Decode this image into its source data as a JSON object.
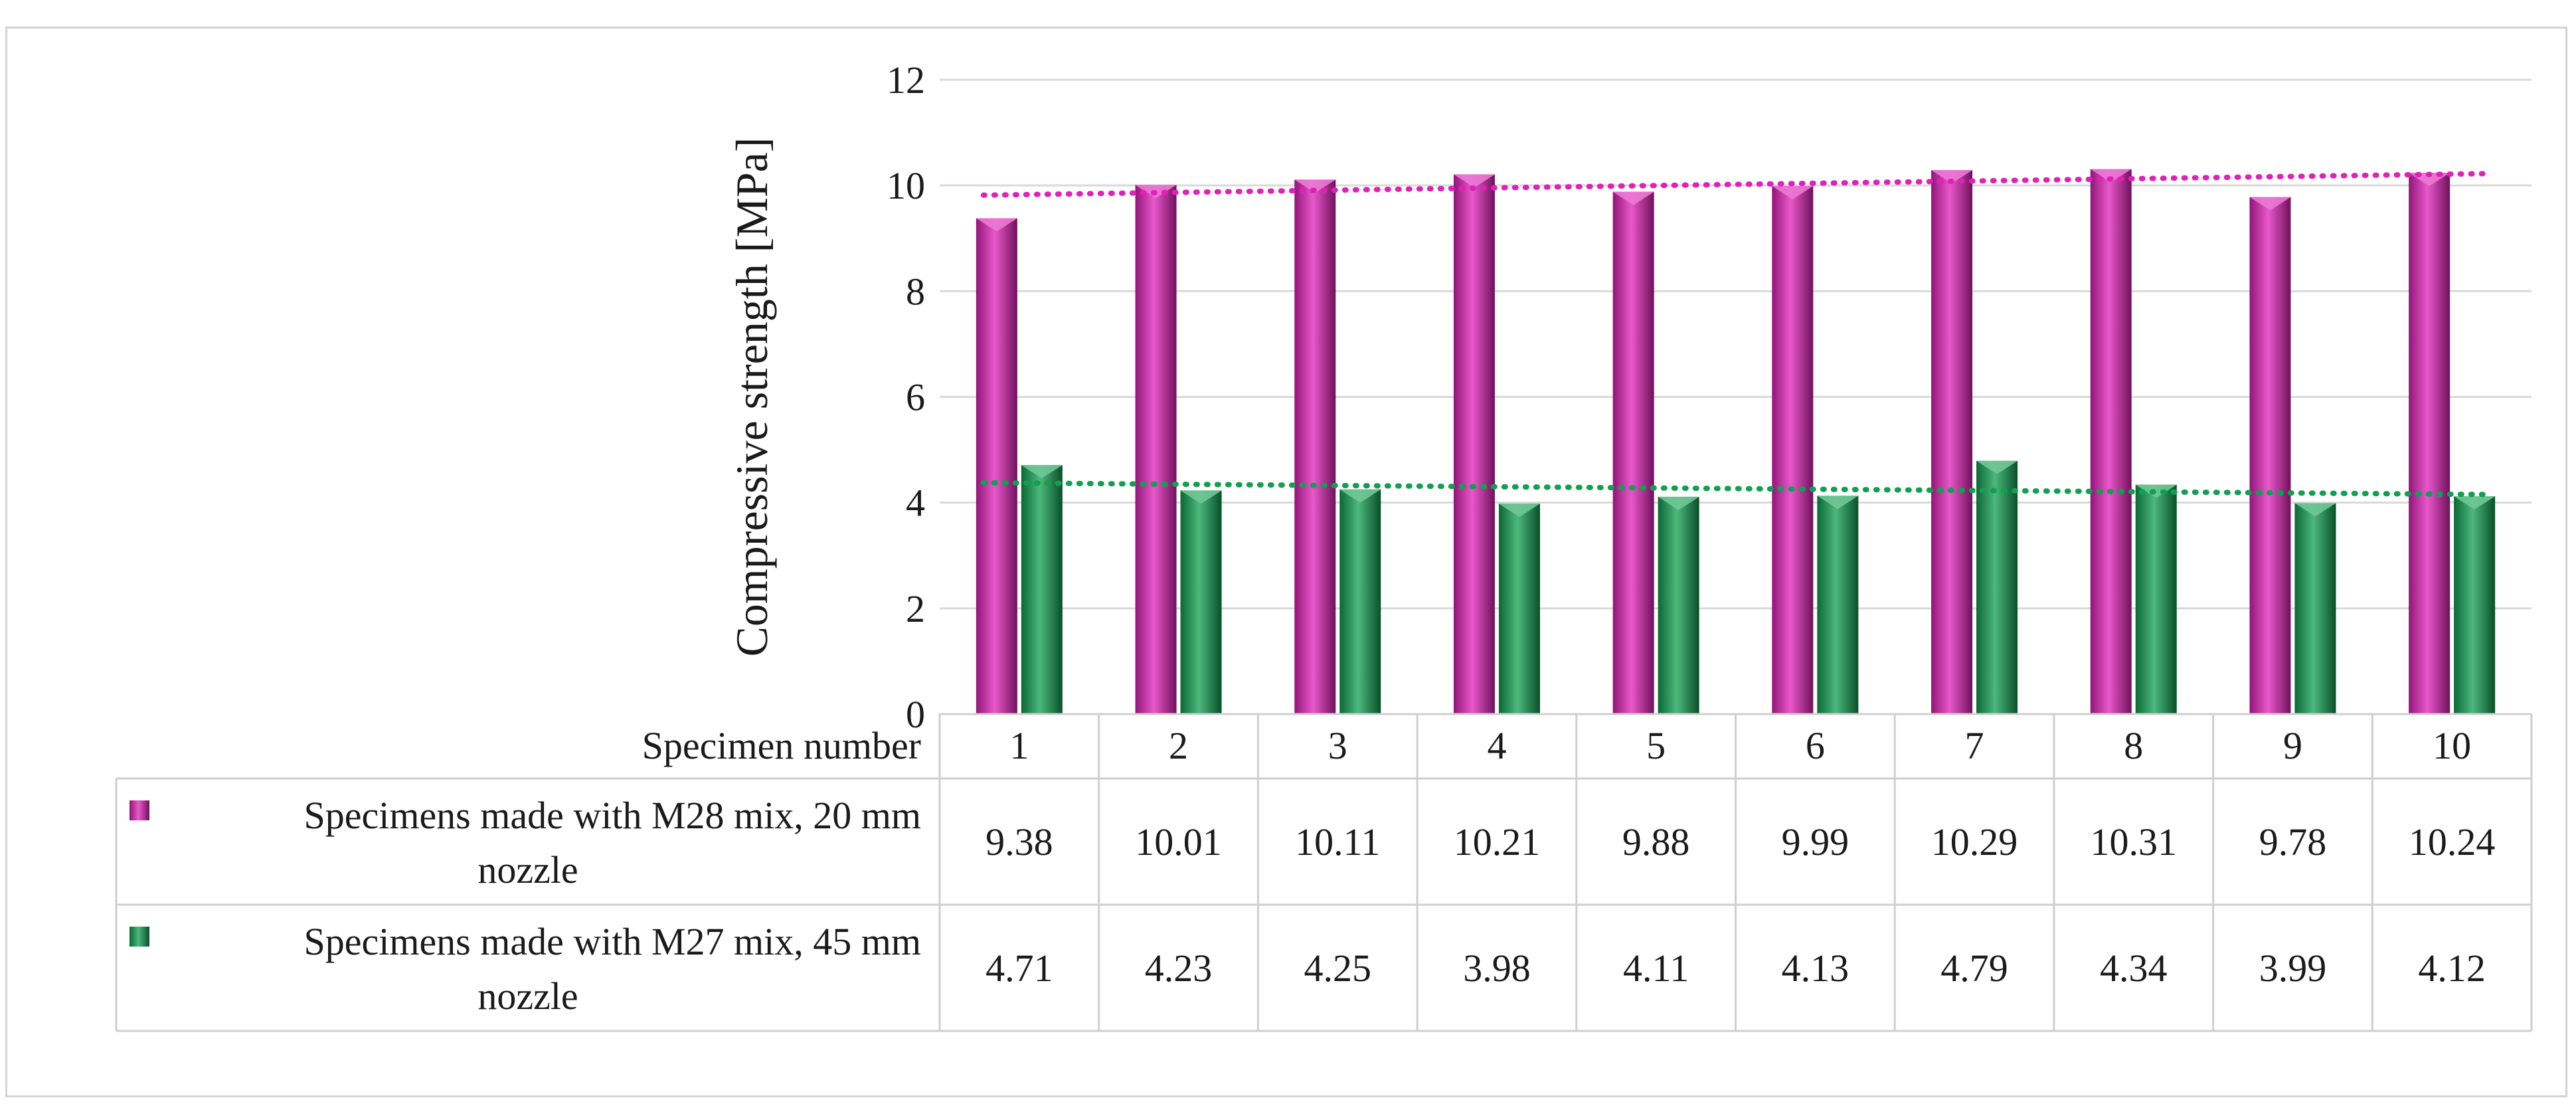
{
  "chart_data": {
    "type": "bar",
    "title": "",
    "ylabel": "Compressive strength [MPa]",
    "xlabel": "Specimen number",
    "ylim": [
      0,
      12
    ],
    "yticks": [
      0,
      2,
      4,
      6,
      8,
      10,
      12
    ],
    "grid": true,
    "categories": [
      "1",
      "2",
      "3",
      "4",
      "5",
      "6",
      "7",
      "8",
      "9",
      "10"
    ],
    "series": [
      {
        "name": "Specimens made with M28 mix, 20 mm nozzle",
        "name_lines": [
          "Specimens made with M28 mix, 20 mm",
          "nozzle"
        ],
        "color": "#e020b8",
        "values": [
          9.38,
          10.01,
          10.11,
          10.21,
          9.88,
          9.99,
          10.29,
          10.31,
          9.78,
          10.24
        ],
        "value_labels": [
          "9.38",
          "10.01",
          "10.11",
          "10.21",
          "9.88",
          "9.99",
          "10.29",
          "10.31",
          "9.78",
          "10.24"
        ],
        "trendline": true
      },
      {
        "name": "Specimens made with M27 mix, 45 mm nozzle",
        "name_lines": [
          "Specimens made with M27 mix, 45 mm",
          "nozzle"
        ],
        "color": "#10a050",
        "values": [
          4.71,
          4.23,
          4.25,
          3.98,
          4.11,
          4.13,
          4.79,
          4.34,
          3.99,
          4.12
        ],
        "value_labels": [
          "4.71",
          "4.23",
          "4.25",
          "3.98",
          "4.11",
          "4.13",
          "4.79",
          "4.34",
          "3.99",
          "4.12"
        ],
        "trendline": true
      }
    ]
  }
}
